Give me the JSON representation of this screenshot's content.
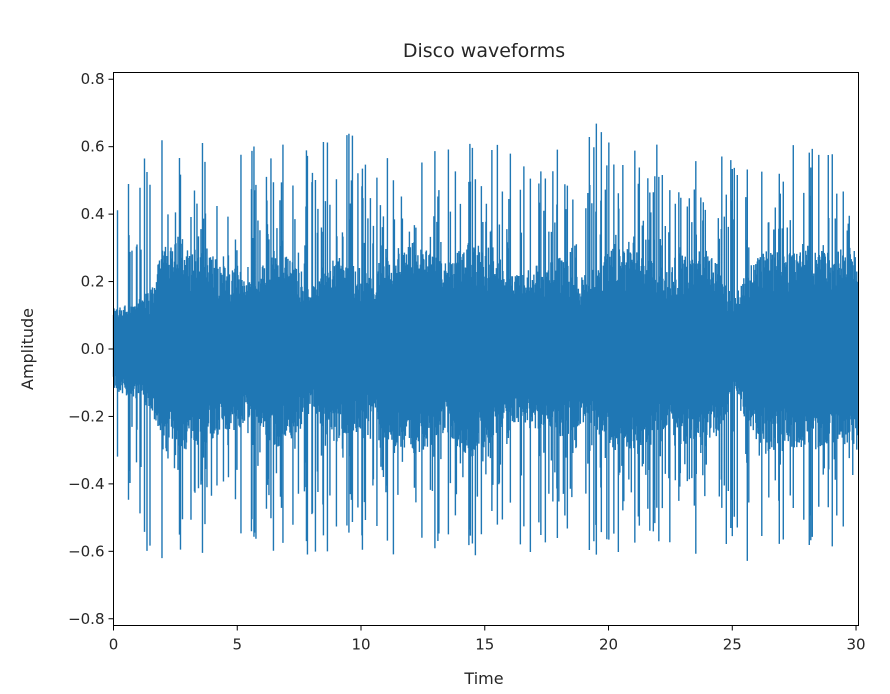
{
  "chart_data": {
    "type": "line",
    "title": "Disco waveforms",
    "xlabel": "Time",
    "ylabel": "Amplitude",
    "xlim": [
      0,
      30.1
    ],
    "ylim": [
      -0.82,
      0.82
    ],
    "x_ticks": [
      0,
      5,
      10,
      15,
      20,
      25,
      30
    ],
    "x_tick_labels": [
      "0",
      "5",
      "10",
      "15",
      "20",
      "25",
      "30"
    ],
    "y_ticks": [
      -0.8,
      -0.6,
      -0.4,
      -0.2,
      0.0,
      0.2,
      0.4,
      0.6,
      0.8
    ],
    "y_tick_labels": [
      "−0.8",
      "−0.6",
      "−0.4",
      "−0.2",
      "0.0",
      "0.2",
      "0.4",
      "0.6",
      "0.8"
    ],
    "grid": false,
    "legend": "none",
    "series_color": "#1f77b4",
    "series": [
      {
        "envelope": {
          "x": [
            0,
            0.5,
            1.0,
            1.5,
            2.0,
            2.5,
            3.0,
            3.5,
            4.0,
            4.5,
            5.0,
            5.5,
            6.0,
            6.5,
            7.0,
            7.5,
            8.0,
            8.5,
            9.0,
            9.5,
            10.0,
            10.5,
            11.0,
            11.5,
            12.0,
            12.5,
            13.0,
            13.5,
            14.0,
            14.5,
            15.0,
            15.5,
            16.0,
            16.5,
            17.0,
            17.5,
            18.0,
            18.5,
            19.0,
            19.5,
            20.0,
            20.5,
            21.0,
            21.5,
            22.0,
            22.5,
            23.0,
            23.5,
            24.0,
            24.5,
            25.0,
            25.5,
            26.0,
            26.5,
            27.0,
            27.5,
            28.0,
            28.5,
            29.0,
            29.5,
            30.0
          ],
          "max": [
            0.6,
            0.55,
            0.6,
            0.55,
            0.66,
            0.6,
            0.75,
            0.62,
            0.6,
            0.6,
            0.6,
            0.6,
            0.62,
            0.6,
            0.62,
            0.6,
            0.62,
            0.66,
            0.6,
            0.7,
            0.6,
            0.65,
            0.6,
            0.62,
            0.6,
            0.62,
            0.6,
            0.6,
            0.58,
            0.62,
            0.6,
            0.62,
            0.6,
            0.6,
            0.62,
            0.58,
            0.62,
            0.6,
            0.6,
            0.7,
            0.62,
            0.6,
            0.62,
            0.6,
            0.62,
            0.6,
            0.6,
            0.62,
            0.6,
            0.6,
            0.6,
            0.66,
            0.62,
            0.6,
            0.62,
            0.62,
            0.6,
            0.6,
            0.62,
            0.6,
            0.62
          ],
          "min": [
            -0.6,
            -0.55,
            -0.6,
            -0.6,
            -0.7,
            -0.6,
            -0.75,
            -0.62,
            -0.6,
            -0.65,
            -0.6,
            -0.6,
            -0.64,
            -0.6,
            -0.62,
            -0.6,
            -0.62,
            -0.66,
            -0.62,
            -0.7,
            -0.6,
            -0.65,
            -0.6,
            -0.62,
            -0.6,
            -0.62,
            -0.6,
            -0.6,
            -0.58,
            -0.62,
            -0.6,
            -0.62,
            -0.6,
            -0.6,
            -0.62,
            -0.58,
            -0.62,
            -0.6,
            -0.6,
            -0.7,
            -0.62,
            -0.6,
            -0.62,
            -0.6,
            -0.62,
            -0.6,
            -0.6,
            -0.62,
            -0.6,
            -0.6,
            -0.6,
            -0.66,
            -0.62,
            -0.6,
            -0.62,
            -0.62,
            -0.6,
            -0.6,
            -0.62,
            -0.6,
            -0.62
          ],
          "dense_max": [
            0.12,
            0.14,
            0.15,
            0.18,
            0.3,
            0.32,
            0.3,
            0.28,
            0.28,
            0.25,
            0.25,
            0.2,
            0.25,
            0.3,
            0.28,
            0.25,
            0.18,
            0.25,
            0.28,
            0.25,
            0.25,
            0.2,
            0.28,
            0.3,
            0.32,
            0.3,
            0.28,
            0.25,
            0.3,
            0.32,
            0.3,
            0.25,
            0.22,
            0.22,
            0.25,
            0.25,
            0.28,
            0.25,
            0.22,
            0.25,
            0.3,
            0.3,
            0.3,
            0.28,
            0.25,
            0.25,
            0.28,
            0.3,
            0.28,
            0.25,
            0.15,
            0.22,
            0.28,
            0.3,
            0.28,
            0.3,
            0.3,
            0.3,
            0.28,
            0.3,
            0.3
          ]
        }
      }
    ]
  }
}
